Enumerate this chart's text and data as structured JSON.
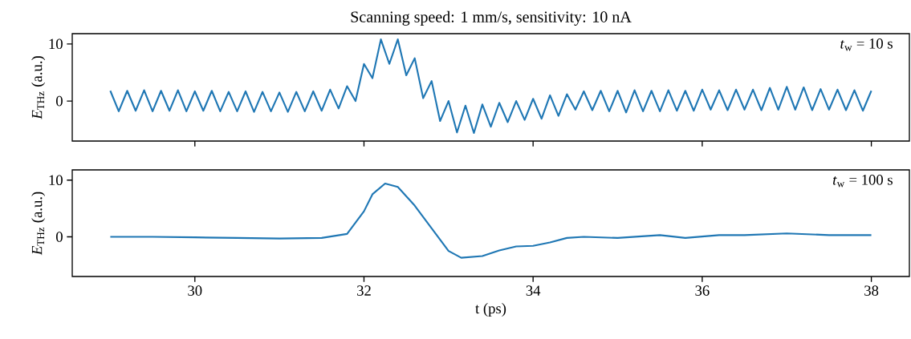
{
  "chart_data": [
    {
      "type": "line",
      "title": "Scanning speed: 1 mm/s, sensitivity: 10 nA",
      "ylabel": "*E*$_{THz}$ (a.u.)",
      "annotations": [
        "*t*$_{w}$ = 10 s"
      ],
      "x": [
        29.0,
        29.1,
        29.2,
        29.3,
        29.4,
        29.5,
        29.6,
        29.7,
        29.8,
        29.9,
        30.0,
        30.1,
        30.2,
        30.3,
        30.4,
        30.5,
        30.6,
        30.7,
        30.8,
        30.9,
        31.0,
        31.1,
        31.2,
        31.3,
        31.4,
        31.5,
        31.6,
        31.7,
        31.8,
        31.9,
        32.0,
        32.1,
        32.2,
        32.3,
        32.4,
        32.5,
        32.6,
        32.7,
        32.8,
        32.9,
        33.0,
        33.1,
        33.2,
        33.3,
        33.4,
        33.5,
        33.6,
        33.7,
        33.8,
        33.9,
        34.0,
        34.1,
        34.2,
        34.3,
        34.4,
        34.5,
        34.6,
        34.7,
        34.8,
        34.9,
        35.0,
        35.1,
        35.2,
        35.3,
        35.4,
        35.5,
        35.6,
        35.7,
        35.8,
        35.9,
        36.0,
        36.1,
        36.2,
        36.3,
        36.4,
        36.5,
        36.6,
        36.7,
        36.8,
        36.9,
        37.0,
        37.1,
        37.2,
        37.3,
        37.4,
        37.5,
        37.6,
        37.7,
        37.8,
        37.9,
        38.0
      ],
      "series": [
        {
          "color": "#1f77b4",
          "values": [
            1.8,
            -1.8,
            1.8,
            -1.7,
            1.9,
            -1.8,
            1.8,
            -1.7,
            1.9,
            -1.8,
            1.7,
            -1.7,
            1.8,
            -1.8,
            1.6,
            -1.8,
            1.7,
            -1.9,
            1.6,
            -1.8,
            1.5,
            -1.9,
            1.6,
            -1.8,
            1.7,
            -1.7,
            2.0,
            -1.3,
            2.6,
            0,
            6.5,
            4,
            10.8,
            6.5,
            10.8,
            4.5,
            7.5,
            0.5,
            3.5,
            -3.5,
            0,
            -5.5,
            -0.8,
            -5.6,
            -0.6,
            -4.5,
            -0.3,
            -3.7,
            0,
            -3.3,
            0.4,
            -3.1,
            1.0,
            -2.6,
            1.2,
            -1.5,
            1.7,
            -1.6,
            1.8,
            -1.8,
            1.8,
            -2.0,
            1.9,
            -1.8,
            1.8,
            -1.8,
            1.9,
            -1.7,
            1.8,
            -1.7,
            2.0,
            -1.5,
            1.9,
            -1.6,
            2.0,
            -1.5,
            2.0,
            -1.6,
            2.3,
            -1.5,
            2.5,
            -1.5,
            2.4,
            -1.6,
            2.1,
            -1.5,
            2.0,
            -1.6,
            1.9,
            -1.7,
            1.8
          ]
        }
      ],
      "xlim": [
        28.55,
        38.45
      ],
      "ylim": [
        -7,
        11.8
      ],
      "xticks": [
        30,
        32,
        34,
        36,
        38
      ],
      "yticks": [
        0,
        10
      ],
      "tick_labels": "y"
    },
    {
      "type": "line",
      "xlabel": "t (ps)",
      "ylabel": "*E*$_{THz}$ (a.u.)",
      "annotations": [
        "*t*$_{w}$ = 100 s"
      ],
      "x": [
        29,
        29.5,
        30,
        30.5,
        31,
        31.5,
        31.8,
        32.0,
        32.1,
        32.25,
        32.4,
        32.6,
        32.8,
        33.0,
        33.15,
        33.4,
        33.6,
        33.8,
        34.0,
        34.2,
        34.4,
        34.6,
        35.0,
        35.5,
        35.8,
        36.2,
        36.5,
        37.0,
        37.5,
        38
      ],
      "series": [
        {
          "color": "#1f77b4",
          "values": [
            0,
            0,
            -0.1,
            -0.2,
            -0.3,
            -0.2,
            0.5,
            4.5,
            7.5,
            9.4,
            8.8,
            5.5,
            1.5,
            -2.5,
            -3.7,
            -3.4,
            -2.4,
            -1.7,
            -1.6,
            -1.0,
            -0.2,
            0,
            -0.2,
            0.3,
            -0.2,
            0.3,
            0.3,
            0.6,
            0.3,
            0.3
          ]
        }
      ],
      "xlim": [
        28.55,
        38.45
      ],
      "ylim": [
        -7,
        11.8
      ],
      "xticks": [
        30,
        32,
        34,
        36,
        38
      ],
      "yticks": [
        0,
        10
      ]
    }
  ]
}
